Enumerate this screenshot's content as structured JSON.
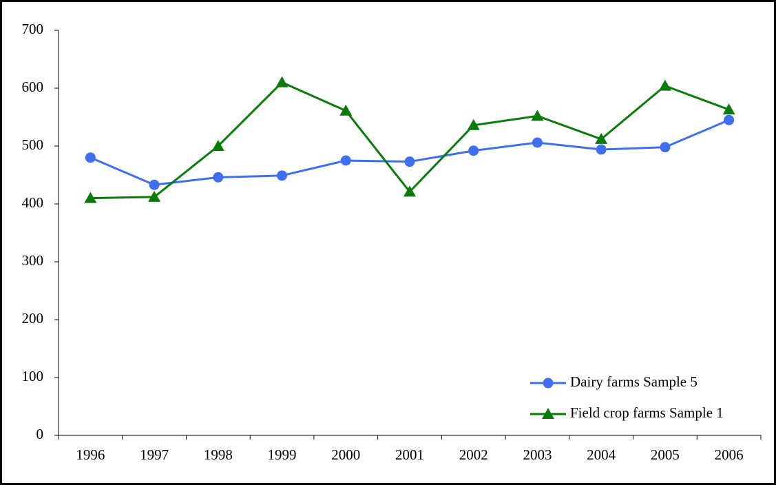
{
  "chart_data": {
    "type": "line",
    "categories": [
      "1996",
      "1997",
      "1998",
      "1999",
      "2000",
      "2001",
      "2002",
      "2003",
      "2004",
      "2005",
      "2006"
    ],
    "series": [
      {
        "name": "Dairy farms Sample 5",
        "color": "#3f6ef0",
        "marker": "circle",
        "values": [
          480,
          433,
          446,
          449,
          475,
          473,
          492,
          506,
          494,
          498,
          545
        ]
      },
      {
        "name": "Field crop farms Sample 1",
        "color": "#0a7a0a",
        "marker": "triangle",
        "values": [
          410,
          412,
          500,
          610,
          561,
          421,
          536,
          552,
          512,
          604,
          563
        ]
      }
    ],
    "ylim": [
      0,
      700
    ],
    "yticks": [
      0,
      100,
      200,
      300,
      400,
      500,
      600,
      700
    ],
    "grid": false,
    "legend": "lower right"
  }
}
